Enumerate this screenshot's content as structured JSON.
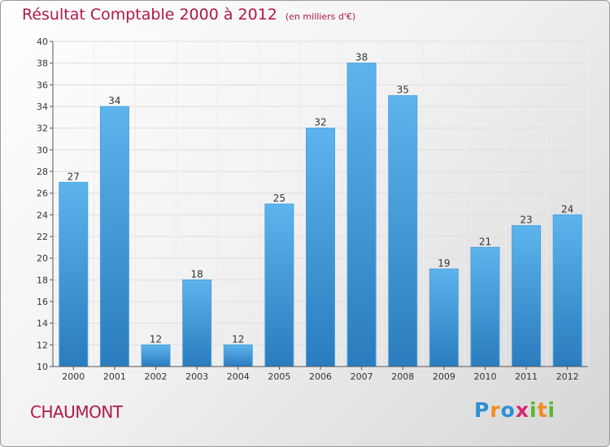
{
  "header": {
    "title": "Résultat Comptable 2000 à 2012",
    "unit": "(en milliers d'€)"
  },
  "footer": {
    "place": "CHAUMONT",
    "logo": "Proxiti"
  },
  "colors": {
    "title": "#b0174a",
    "bar_light": "#5db4ec",
    "bar_dark": "#2a7cbe"
  },
  "chart_data": {
    "type": "bar",
    "title": "Résultat Comptable 2000 à 2012",
    "subtitle": "(en milliers d'€)",
    "xlabel": "",
    "ylabel": "",
    "categories": [
      "2000",
      "2001",
      "2002",
      "2003",
      "2004",
      "2005",
      "2006",
      "2007",
      "2008",
      "2009",
      "2010",
      "2011",
      "2012"
    ],
    "values": [
      27,
      34,
      12,
      18,
      12,
      25,
      32,
      38,
      35,
      19,
      21,
      23,
      24
    ],
    "ylim": [
      10,
      40
    ],
    "yticks": [
      10,
      12,
      14,
      16,
      18,
      20,
      22,
      24,
      26,
      28,
      30,
      32,
      34,
      36,
      38,
      40
    ],
    "grid": true,
    "legend": "none"
  }
}
